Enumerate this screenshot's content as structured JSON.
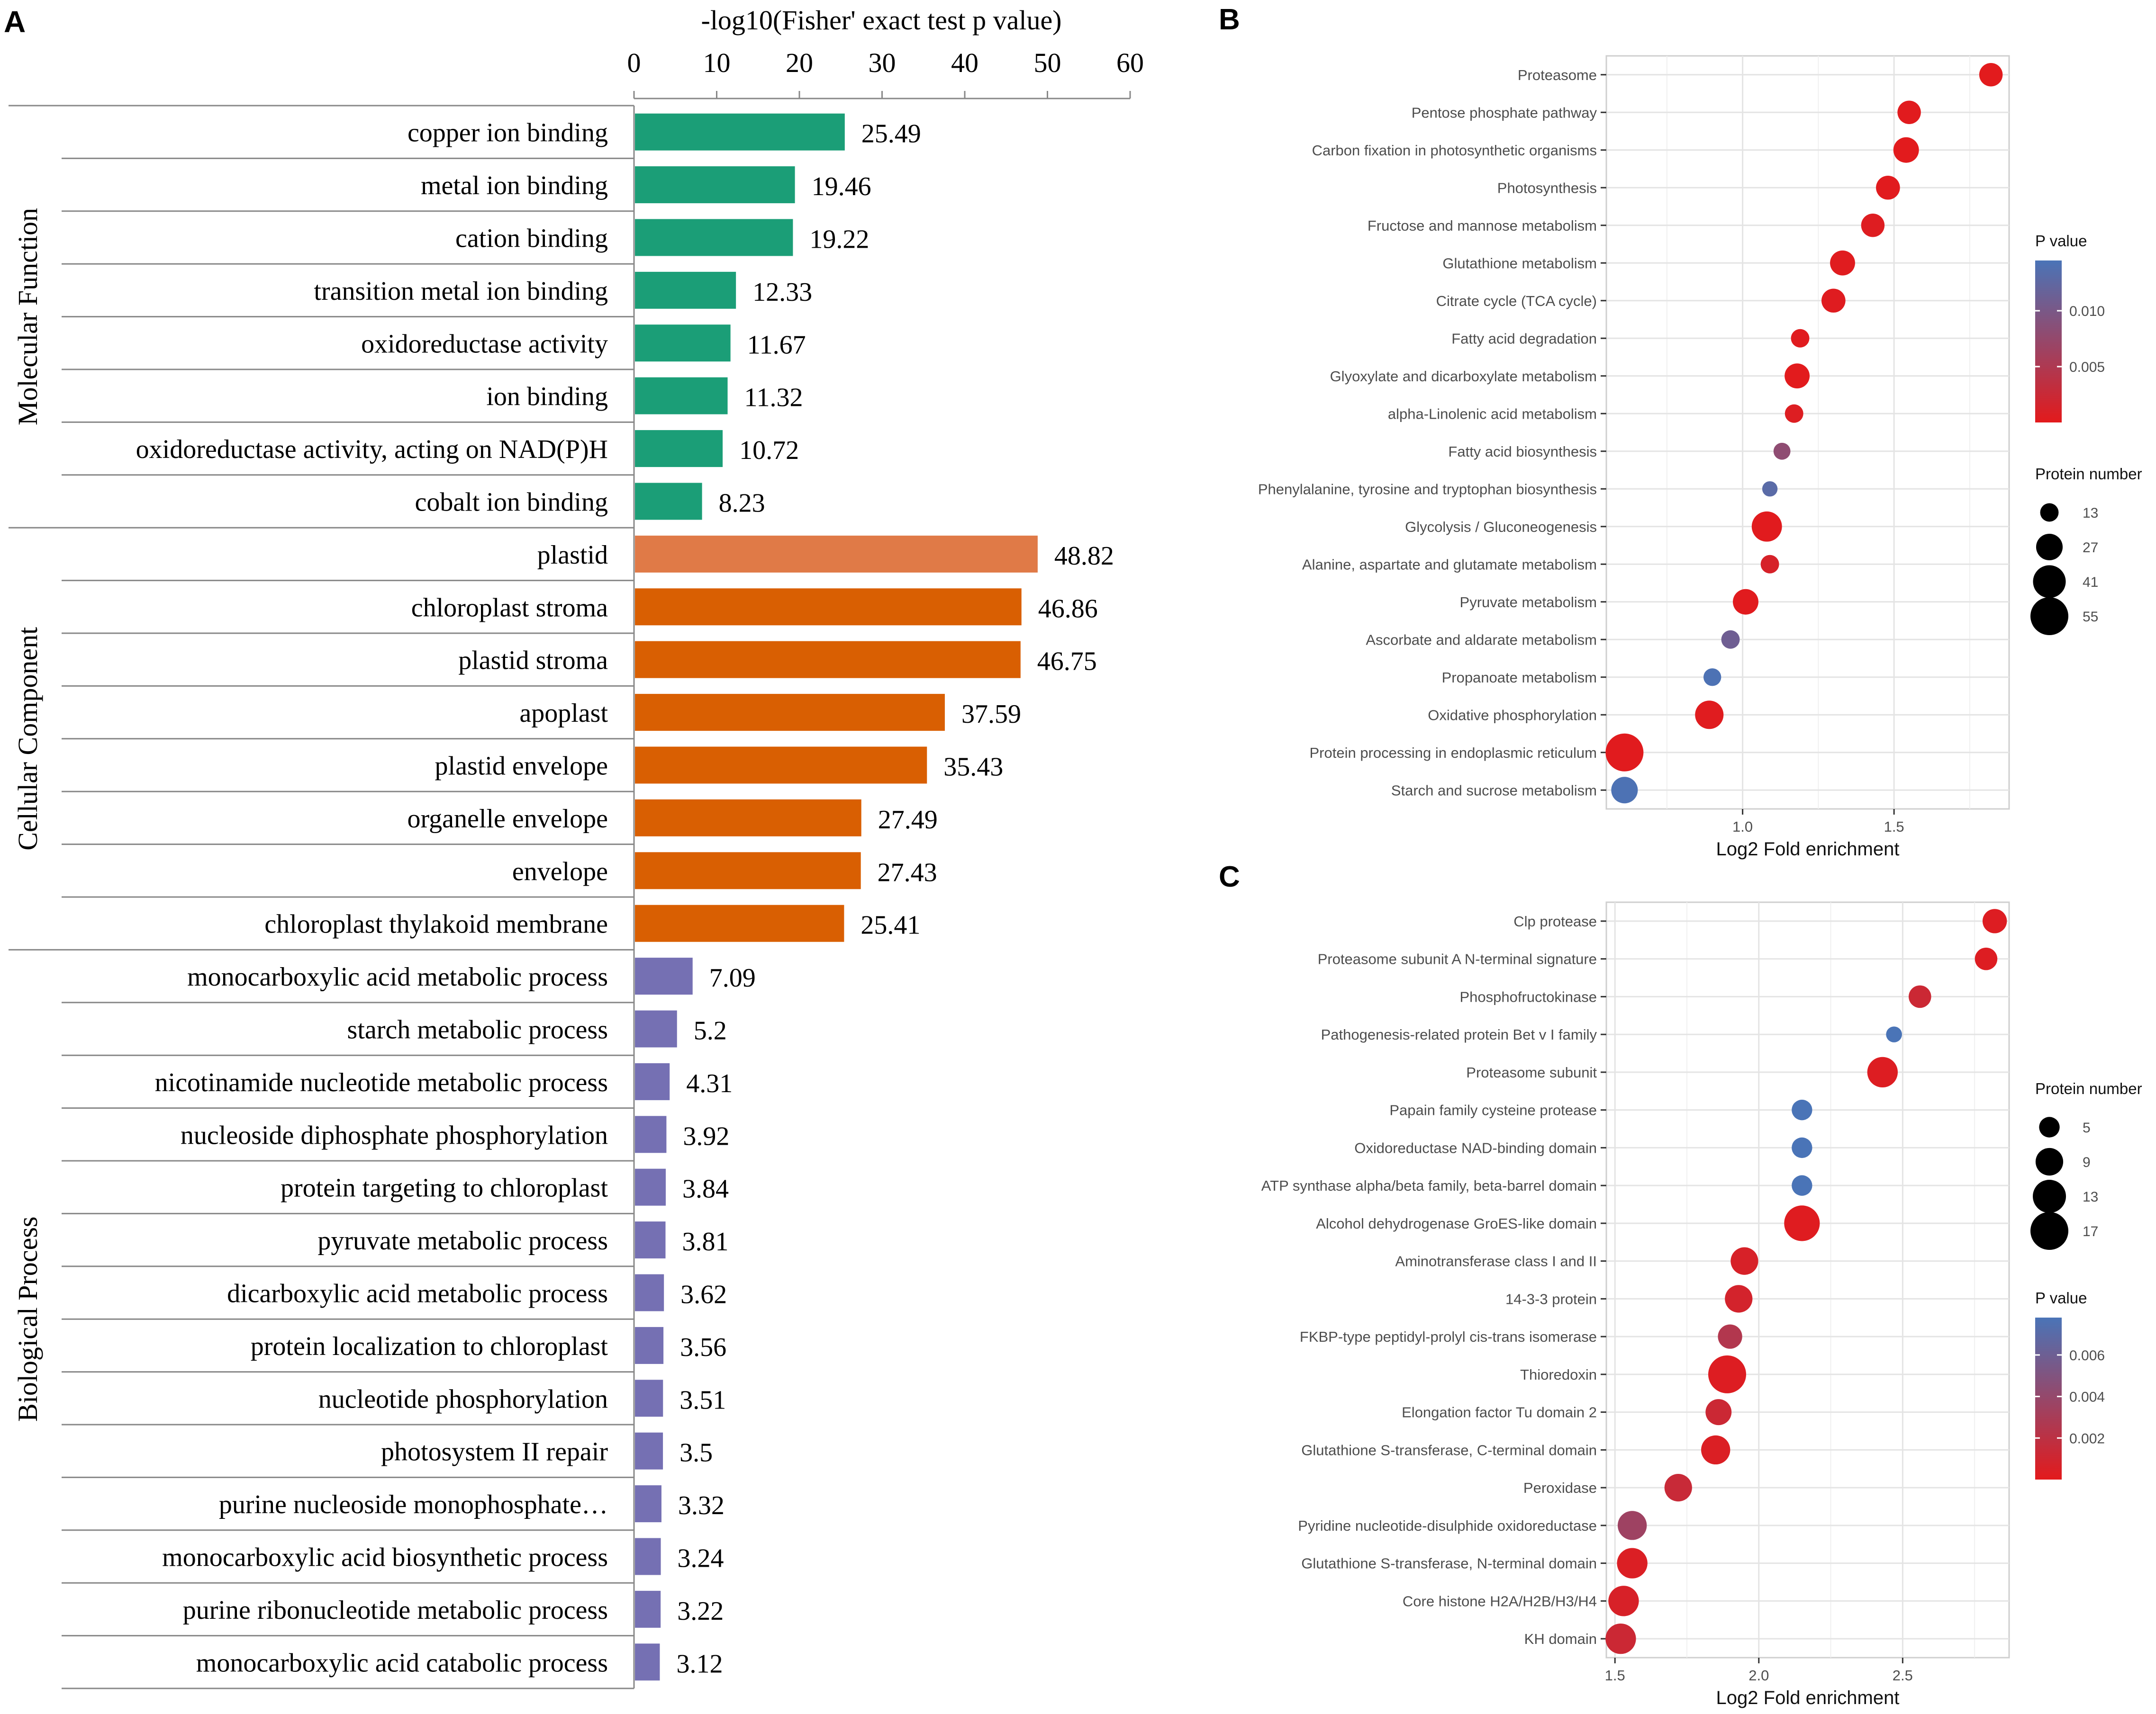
{
  "panel_labels": {
    "a": "A",
    "b": "B",
    "c": "C"
  },
  "chart_data": [
    {
      "type": "bar",
      "orientation": "horizontal",
      "title": "-log10(Fisher' exact test p value)",
      "xlim": [
        0,
        60
      ],
      "xticks": [
        0,
        10,
        20,
        30,
        40,
        50,
        60
      ],
      "groups": [
        {
          "name": "Molecular Function",
          "color": "#1b9e77",
          "items": [
            {
              "label": "copper ion binding",
              "value": 25.49,
              "value_label": "25.49"
            },
            {
              "label": "metal ion binding",
              "value": 19.46,
              "value_label": "19.46"
            },
            {
              "label": "cation binding",
              "value": 19.22,
              "value_label": "19.22"
            },
            {
              "label": "transition metal ion binding",
              "value": 12.33,
              "value_label": "12.33"
            },
            {
              "label": "oxidoreductase activity",
              "value": 11.67,
              "value_label": "11.67"
            },
            {
              "label": "ion binding",
              "value": 11.32,
              "value_label": "11.32"
            },
            {
              "label": "oxidoreductase activity, acting on NAD(P)H",
              "value": 10.72,
              "value_label": "10.72"
            },
            {
              "label": "cobalt ion binding",
              "value": 8.23,
              "value_label": "8.23"
            }
          ]
        },
        {
          "name": "Cellular Component",
          "color": "#d95f02",
          "highlight_color": "#e07a47",
          "items": [
            {
              "label": "plastid",
              "value": 48.82,
              "value_label": "48.82",
              "highlight": true
            },
            {
              "label": "chloroplast stroma",
              "value": 46.86,
              "value_label": "46.86"
            },
            {
              "label": "plastid stroma",
              "value": 46.75,
              "value_label": "46.75"
            },
            {
              "label": "apoplast",
              "value": 37.59,
              "value_label": "37.59"
            },
            {
              "label": "plastid envelope",
              "value": 35.43,
              "value_label": "35.43"
            },
            {
              "label": "organelle envelope",
              "value": 27.49,
              "value_label": "27.49"
            },
            {
              "label": "envelope",
              "value": 27.43,
              "value_label": "27.43"
            },
            {
              "label": "chloroplast thylakoid membrane",
              "value": 25.41,
              "value_label": "25.41"
            }
          ]
        },
        {
          "name": "Biological Process",
          "color": "#7570b3",
          "items": [
            {
              "label": "monocarboxylic acid metabolic process",
              "value": 7.09,
              "value_label": "7.09"
            },
            {
              "label": "starch metabolic process",
              "value": 5.2,
              "value_label": "5.2"
            },
            {
              "label": "nicotinamide nucleotide metabolic process",
              "value": 4.31,
              "value_label": "4.31"
            },
            {
              "label": "nucleoside diphosphate phosphorylation",
              "value": 3.92,
              "value_label": "3.92"
            },
            {
              "label": "protein targeting to chloroplast",
              "value": 3.84,
              "value_label": "3.84"
            },
            {
              "label": "pyruvate metabolic process",
              "value": 3.81,
              "value_label": "3.81"
            },
            {
              "label": "dicarboxylic acid metabolic process",
              "value": 3.62,
              "value_label": "3.62"
            },
            {
              "label": "protein localization to chloroplast",
              "value": 3.56,
              "value_label": "3.56"
            },
            {
              "label": "nucleotide phosphorylation",
              "value": 3.51,
              "value_label": "3.51"
            },
            {
              "label": "photosystem II repair",
              "value": 3.5,
              "value_label": "3.5"
            },
            {
              "label": "purine nucleoside monophosphate…",
              "value": 3.32,
              "value_label": "3.32"
            },
            {
              "label": "monocarboxylic acid biosynthetic process",
              "value": 3.24,
              "value_label": "3.24"
            },
            {
              "label": "purine ribonucleotide metabolic process",
              "value": 3.22,
              "value_label": "3.22"
            },
            {
              "label": "monocarboxylic acid catabolic process",
              "value": 3.12,
              "value_label": "3.12"
            }
          ]
        }
      ]
    },
    {
      "type": "scatter",
      "subtype": "bubble",
      "xlabel": "Log2 Fold enrichment",
      "xlim": [
        0.55,
        1.88
      ],
      "xticks": [
        1.0,
        1.5
      ],
      "xtick_labels": [
        "1.0",
        "1.5"
      ],
      "categories": [
        "Proteasome",
        "Pentose phosphate pathway",
        "Carbon fixation in photosynthetic organisms",
        "Photosynthesis",
        "Fructose and mannose metabolism",
        "Glutathione metabolism",
        "Citrate cycle (TCA cycle)",
        "Fatty acid degradation",
        "Glyoxylate and dicarboxylate metabolism",
        "alpha-Linolenic acid metabolism",
        "Fatty acid biosynthesis",
        "Phenylalanine, tyrosine and tryptophan biosynthesis",
        "Glycolysis / Gluconeogenesis",
        "Alanine, aspartate and glutamate metabolism",
        "Pyruvate metabolism",
        "Ascorbate and aldarate metabolism",
        "Propanoate metabolism",
        "Oxidative phosphorylation",
        "Protein processing in endoplasmic reticulum",
        "Starch and sucrose metabolism"
      ],
      "x": [
        1.82,
        1.55,
        1.54,
        1.48,
        1.43,
        1.33,
        1.3,
        1.19,
        1.18,
        1.17,
        1.13,
        1.09,
        1.08,
        1.09,
        1.01,
        0.96,
        0.9,
        0.89,
        0.61,
        0.61
      ],
      "size": [
        21,
        21,
        25,
        22,
        21,
        24,
        22,
        13,
        24,
        13,
        11,
        9,
        35,
        13,
        25,
        13,
        12,
        31,
        55,
        27
      ],
      "p_value": [
        0.0001,
        0.0002,
        0.0001,
        0.0002,
        0.0005,
        0.0003,
        0.0004,
        0.0003,
        0.0001,
        0.0006,
        0.008,
        0.013,
        0.0002,
        0.0012,
        0.0002,
        0.011,
        0.0142,
        0.0003,
        0.0002,
        0.0142
      ],
      "legend": {
        "p_title": "P value",
        "p_range": [
          0.0,
          0.0145
        ],
        "p_ticks": [
          0.005,
          0.01
        ],
        "p_tick_labels": [
          "0.005",
          "0.010"
        ],
        "size_title": "Protein number",
        "size_values": [
          13,
          27,
          41,
          55
        ],
        "size_labels": [
          "13",
          "27",
          "41",
          "55"
        ],
        "color_low": "#e31a1c",
        "color_high": "#4a74b7"
      }
    },
    {
      "type": "scatter",
      "subtype": "bubble",
      "xlabel": "Log2 Fold enrichment",
      "xlim": [
        1.47,
        2.87
      ],
      "xticks": [
        1.5,
        2.0,
        2.5
      ],
      "xtick_labels": [
        "1.5",
        "2.0",
        "2.5"
      ],
      "categories": [
        "Clp protease",
        "Proteasome subunit A N-terminal signature",
        "Phosphofructokinase",
        "Pathogenesis-related protein Bet v I family",
        "Proteasome subunit",
        "Papain family cysteine protease",
        "Oxidoreductase NAD-binding domain",
        "ATP synthase alpha/beta family, beta-barrel domain",
        "Alcohol dehydrogenase GroES-like domain",
        "Aminotransferase class I and II",
        "14-3-3 protein",
        "FKBP-type peptidyl-prolyl cis-trans isomerase",
        "Thioredoxin",
        "Elongation factor Tu domain 2",
        "Glutathione S-transferase, C-terminal domain",
        "Peroxidase",
        "Pyridine nucleotide-disulphide oxidoreductase",
        "Glutathione S-transferase, N-terminal domain",
        "Core histone H2A/H2B/H3/H4",
        "KH domain"
      ],
      "x": [
        2.82,
        2.79,
        2.56,
        2.47,
        2.43,
        2.15,
        2.15,
        2.15,
        2.15,
        1.95,
        1.93,
        1.9,
        1.89,
        1.86,
        1.85,
        1.72,
        1.56,
        1.56,
        1.53,
        1.52
      ],
      "size": [
        7,
        6,
        6,
        3,
        11,
        5,
        5,
        5,
        15,
        9,
        9,
        7,
        17,
        8,
        10,
        9,
        10,
        11,
        11,
        11
      ],
      "p_value": [
        0.0003,
        0.0003,
        0.0012,
        0.0078,
        0.0003,
        0.0078,
        0.0078,
        0.0078,
        0.0002,
        0.0006,
        0.0008,
        0.0025,
        0.0003,
        0.0012,
        0.0004,
        0.0014,
        0.0035,
        0.0004,
        0.0006,
        0.0012
      ],
      "legend": {
        "p_title": "P value",
        "p_range": [
          0.0,
          0.0078
        ],
        "p_ticks": [
          0.002,
          0.004,
          0.006
        ],
        "p_tick_labels": [
          "0.002",
          "0.004",
          "0.006"
        ],
        "size_title": "Protein number",
        "size_values": [
          5,
          9,
          13,
          17
        ],
        "size_labels": [
          "5",
          "9",
          "13",
          "17"
        ],
        "color_low": "#e31a1c",
        "color_high": "#4a74b7"
      }
    }
  ]
}
